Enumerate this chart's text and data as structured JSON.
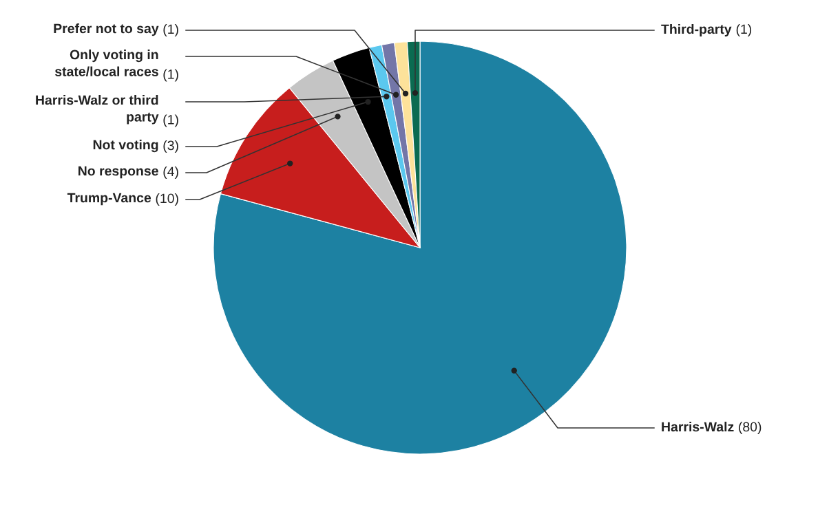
{
  "chart_data": {
    "type": "pie",
    "categories": [
      "Harris-Walz",
      "Trump-Vance",
      "No response",
      "Not voting",
      "Harris-Walz or third\nparty",
      "Only voting in\nstate/local races",
      "Prefer not to say",
      "Third-party"
    ],
    "values": [
      80,
      10,
      4,
      3,
      1,
      1,
      1,
      1
    ],
    "colors": [
      "#1d81a2",
      "#c71e1d",
      "#c4c4c4",
      "#000000",
      "#5bc8ef",
      "#7376a8",
      "#fde29a",
      "#0b6b51"
    ],
    "value_labels": [
      "(80)",
      "(10)",
      "(4)",
      "(3)",
      "(1)",
      "(1)",
      "(1)",
      "(1)"
    ]
  }
}
